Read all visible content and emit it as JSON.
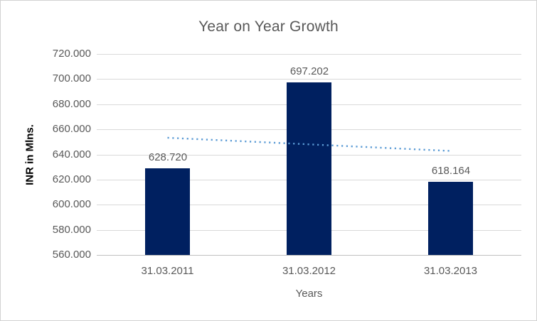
{
  "chart_data": {
    "type": "bar",
    "title": "Year on Year Growth",
    "categories": [
      "31.03.2011",
      "31.03.2012",
      "31.03.2013"
    ],
    "values": [
      628.72,
      697.202,
      618.164
    ],
    "data_labels": [
      "628.720",
      "697.202",
      "618.164"
    ],
    "xlabel": "Years",
    "ylabel": "INR in Mlns.",
    "ylim": [
      560,
      720
    ],
    "ytick_step": 20,
    "ytick_labels": [
      "560.000",
      "580.000",
      "600.000",
      "620.000",
      "640.000",
      "660.000",
      "680.000",
      "700.000",
      "720.000"
    ],
    "grid": true,
    "legend": "none",
    "trendline": {
      "kind": "linear",
      "style": "dotted",
      "start_value": 653.3,
      "end_value": 642.8
    },
    "colors": {
      "bar": "#002060",
      "trendline": "#5B9BD5",
      "gridline": "#D9D9D9",
      "axis_line": "#BFBFBF",
      "text": "#595959",
      "y_axis_title_text": "#000000",
      "border": "#D2D2D2",
      "background": "#FFFFFF"
    }
  }
}
